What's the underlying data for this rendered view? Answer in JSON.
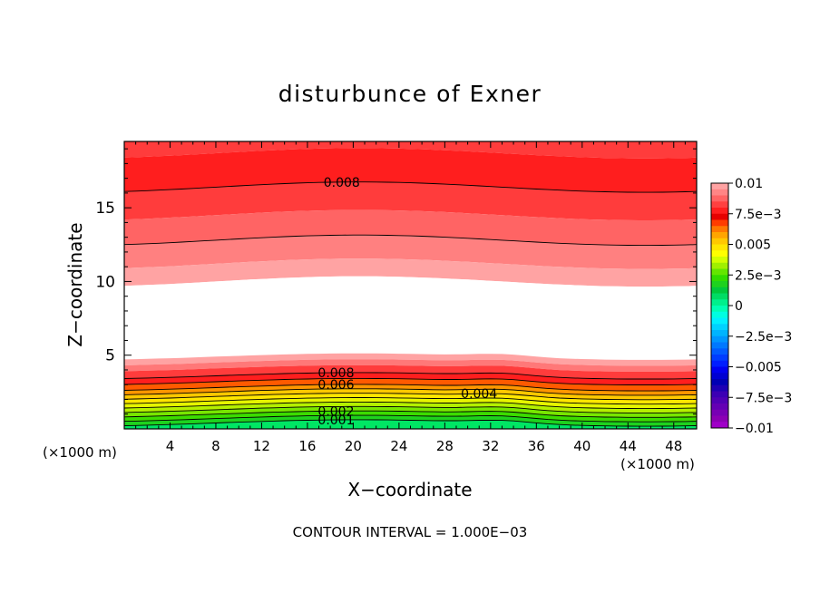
{
  "chart_data": {
    "type": "contour",
    "title": "disturbunce of Exner",
    "xlabel": "X−coordinate",
    "ylabel": "Z−coordinate",
    "x_unit_left": "(×1000 m)",
    "x_unit_right": "(×1000 m)",
    "footer": "CONTOUR INTERVAL = 1.000E−03",
    "xlim": [
      0,
      50
    ],
    "ylim": [
      0,
      19.5
    ],
    "x_ticks": [
      4,
      8,
      12,
      16,
      20,
      24,
      28,
      32,
      36,
      40,
      44,
      48
    ],
    "y_ticks": [
      5,
      10,
      15
    ],
    "contour_interval": 0.001,
    "colorbar": {
      "tick_labels": [
        "0.01",
        "7.5e−3",
        "0.005",
        "2.5e−3",
        "0",
        "−2.5e−3",
        "−0.005",
        "−7.5e−3",
        "−0.01"
      ],
      "tick_values": [
        0.01,
        0.0075,
        0.005,
        0.0025,
        0,
        -0.0025,
        -0.005,
        -0.0075,
        -0.01
      ],
      "levels": [
        {
          "range": [
            0.0095,
            0.01
          ],
          "color": "#ffa3a3"
        },
        {
          "range": [
            0.009,
            0.0095
          ],
          "color": "#ff8585"
        },
        {
          "range": [
            0.0085,
            0.009
          ],
          "color": "#ff6464"
        },
        {
          "range": [
            0.008,
            0.0085
          ],
          "color": "#ff4040"
        },
        {
          "range": [
            0.0075,
            0.008
          ],
          "color": "#ff1e1e"
        },
        {
          "range": [
            0.007,
            0.0075
          ],
          "color": "#e60000"
        },
        {
          "range": [
            0.0065,
            0.007
          ],
          "color": "#ff3c00"
        },
        {
          "range": [
            0.006,
            0.0065
          ],
          "color": "#ff7800"
        },
        {
          "range": [
            0.0055,
            0.006
          ],
          "color": "#ffa500"
        },
        {
          "range": [
            0.005,
            0.0055
          ],
          "color": "#ffc800"
        },
        {
          "range": [
            0.0045,
            0.005
          ],
          "color": "#ffe600"
        },
        {
          "range": [
            0.004,
            0.0045
          ],
          "color": "#ffff00"
        },
        {
          "range": [
            0.0035,
            0.004
          ],
          "color": "#d2ff00"
        },
        {
          "range": [
            0.003,
            0.0035
          ],
          "color": "#a0f000"
        },
        {
          "range": [
            0.0025,
            0.003
          ],
          "color": "#64e600"
        },
        {
          "range": [
            0.002,
            0.0025
          ],
          "color": "#32dc00"
        },
        {
          "range": [
            0.0015,
            0.002
          ],
          "color": "#1ed21e"
        },
        {
          "range": [
            0.001,
            0.0015
          ],
          "color": "#00c83c"
        },
        {
          "range": [
            0.0005,
            0.001
          ],
          "color": "#00dc64"
        },
        {
          "range": [
            0,
            0.0005
          ],
          "color": "#00f08c"
        },
        {
          "range": [
            -0.0005,
            0
          ],
          "color": "#00ffb4"
        },
        {
          "range": [
            -0.001,
            -0.0005
          ],
          "color": "#00ffe1"
        },
        {
          "range": [
            -0.0015,
            -0.001
          ],
          "color": "#00f0ff"
        },
        {
          "range": [
            -0.002,
            -0.0015
          ],
          "color": "#00d2ff"
        },
        {
          "range": [
            -0.0025,
            -0.002
          ],
          "color": "#00b4ff"
        },
        {
          "range": [
            -0.003,
            -0.0025
          ],
          "color": "#0096ff"
        },
        {
          "range": [
            -0.0035,
            -0.003
          ],
          "color": "#0078ff"
        },
        {
          "range": [
            -0.004,
            -0.0035
          ],
          "color": "#005aff"
        },
        {
          "range": [
            -0.0045,
            -0.004
          ],
          "color": "#003cff"
        },
        {
          "range": [
            -0.005,
            -0.0045
          ],
          "color": "#001eff"
        },
        {
          "range": [
            -0.0055,
            -0.005
          ],
          "color": "#0000f0"
        },
        {
          "range": [
            -0.006,
            -0.0055
          ],
          "color": "#0000d2"
        },
        {
          "range": [
            -0.0065,
            -0.006
          ],
          "color": "#0000b4"
        },
        {
          "range": [
            -0.007,
            -0.0065
          ],
          "color": "#1e00b4"
        },
        {
          "range": [
            -0.0075,
            -0.007
          ],
          "color": "#3c00b4"
        },
        {
          "range": [
            -0.008,
            -0.0075
          ],
          "color": "#5000b4"
        },
        {
          "range": [
            -0.0085,
            -0.008
          ],
          "color": "#6400b4"
        },
        {
          "range": [
            -0.009,
            -0.0085
          ],
          "color": "#7800b4"
        },
        {
          "range": [
            -0.0095,
            -0.009
          ],
          "color": "#8c00b4"
        },
        {
          "range": [
            -0.01,
            -0.0095
          ],
          "color": "#a000c8"
        }
      ]
    },
    "field_bands": [
      {
        "z_range": [
          18.7,
          19.5
        ],
        "color": "#ff3c3c"
      },
      {
        "z_range": [
          16.4,
          18.7
        ],
        "color": "#ff1e1e"
      },
      {
        "z_range": [
          14.5,
          16.4
        ],
        "color": "#ff3c3c"
      },
      {
        "z_range": [
          12.8,
          14.5
        ],
        "color": "#ff6464"
      },
      {
        "z_range": [
          11.2,
          12.8
        ],
        "color": "#ff8080"
      },
      {
        "z_range": [
          10.0,
          11.2
        ],
        "color": "#ffa3a3"
      },
      {
        "z_range": [
          4.9,
          10.0
        ],
        "color": "#ffffff"
      },
      {
        "z_range": [
          4.5,
          4.9
        ],
        "color": "#ffa3a3"
      },
      {
        "z_range": [
          4.1,
          4.5
        ],
        "color": "#ff7878"
      },
      {
        "z_range": [
          3.6,
          4.1
        ],
        "color": "#ff3c3c"
      },
      {
        "z_range": [
          3.2,
          3.6
        ],
        "color": "#ff1e1e"
      },
      {
        "z_range": [
          2.8,
          3.2
        ],
        "color": "#ff5a00"
      },
      {
        "z_range": [
          2.5,
          2.8
        ],
        "color": "#ff9600"
      },
      {
        "z_range": [
          2.2,
          2.5
        ],
        "color": "#ffc800"
      },
      {
        "z_range": [
          1.9,
          2.2
        ],
        "color": "#ffe600"
      },
      {
        "z_range": [
          1.6,
          1.9
        ],
        "color": "#e6f500"
      },
      {
        "z_range": [
          1.3,
          1.6
        ],
        "color": "#b4f000"
      },
      {
        "z_range": [
          1.0,
          1.3
        ],
        "color": "#78e600"
      },
      {
        "z_range": [
          0.7,
          1.0
        ],
        "color": "#3cdc00"
      },
      {
        "z_range": [
          0.4,
          0.7
        ],
        "color": "#1ed21e"
      },
      {
        "z_range": [
          0.0,
          0.4
        ],
        "color": "#00e664"
      }
    ],
    "contour_lines": [
      {
        "z": 16.4,
        "label": "0.008",
        "label_x": 19.0
      },
      {
        "z": 12.8,
        "label": "",
        "label_x": 0
      },
      {
        "z": 3.6,
        "label": "0.008",
        "label_x": 18.5
      },
      {
        "z": 3.2,
        "label": "",
        "label_x": 0
      },
      {
        "z": 2.8,
        "label": "0.006",
        "label_x": 18.5
      },
      {
        "z": 2.5,
        "label": "",
        "label_x": 0
      },
      {
        "z": 2.2,
        "label": "0.004",
        "label_x": 31.0
      },
      {
        "z": 1.9,
        "label": "",
        "label_x": 0
      },
      {
        "z": 1.6,
        "label": "",
        "label_x": 0
      },
      {
        "z": 1.3,
        "label": "",
        "label_x": 0
      },
      {
        "z": 1.0,
        "label": "0.002",
        "label_x": 18.5
      },
      {
        "z": 0.7,
        "label": "",
        "label_x": 0
      },
      {
        "z": 0.4,
        "label": "0.001",
        "label_x": 18.5
      }
    ]
  }
}
